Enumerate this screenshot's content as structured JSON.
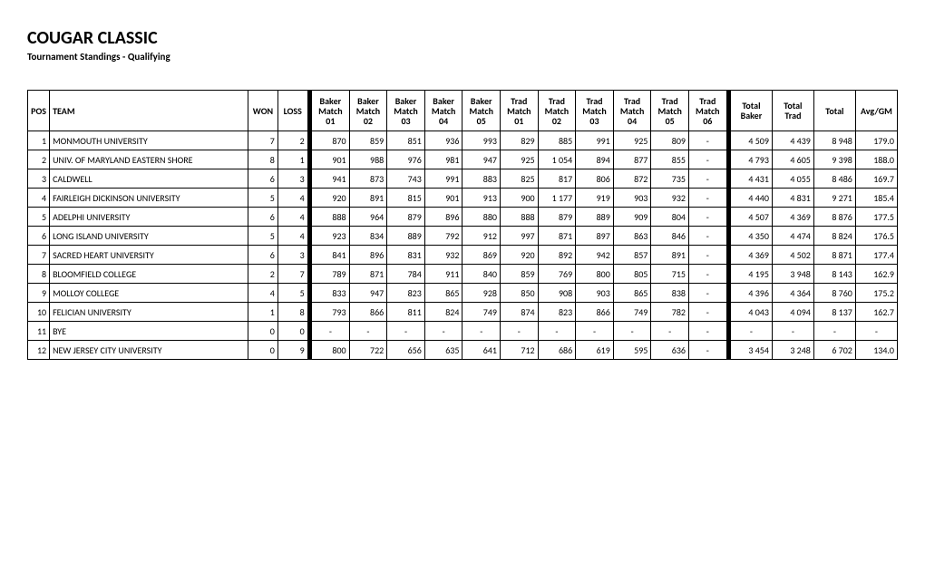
{
  "title": "COUGAR CLASSIC",
  "subtitle": "Tournament Standings - Qualifying",
  "headers": {
    "pos": "POS",
    "team": "TEAM",
    "won": "WON",
    "loss": "LOSS",
    "baker": "Baker",
    "trad": "Trad",
    "match": "Match",
    "m01": "01",
    "m02": "02",
    "m03": "03",
    "m04": "04",
    "m05": "05",
    "m06": "06",
    "total_baker": "Total\nBaker",
    "total_trad": "Total\nTrad",
    "total": "Total",
    "avg": "Avg/GM"
  },
  "rows": [
    {
      "pos": "1",
      "team": "MONMOUTH UNIVERSITY",
      "won": "7",
      "loss": "2",
      "b01": "870",
      "b02": "859",
      "b03": "851",
      "b04": "936",
      "b05": "993",
      "t01": "829",
      "t02": "885",
      "t03": "991",
      "t04": "925",
      "t05": "809",
      "t06": "-",
      "tb": "4 509",
      "tt": "4 439",
      "tot": "8 948",
      "avg": "179.0"
    },
    {
      "pos": "2",
      "team": "UNIV. OF MARYLAND EASTERN SHORE",
      "won": "8",
      "loss": "1",
      "b01": "901",
      "b02": "988",
      "b03": "976",
      "b04": "981",
      "b05": "947",
      "t01": "925",
      "t02": "1 054",
      "t03": "894",
      "t04": "877",
      "t05": "855",
      "t06": "-",
      "tb": "4 793",
      "tt": "4 605",
      "tot": "9 398",
      "avg": "188.0"
    },
    {
      "pos": "3",
      "team": "CALDWELL",
      "won": "6",
      "loss": "3",
      "b01": "941",
      "b02": "873",
      "b03": "743",
      "b04": "991",
      "b05": "883",
      "t01": "825",
      "t02": "817",
      "t03": "806",
      "t04": "872",
      "t05": "735",
      "t06": "-",
      "tb": "4 431",
      "tt": "4 055",
      "tot": "8 486",
      "avg": "169.7"
    },
    {
      "pos": "4",
      "team": "FAIRLEIGH DICKINSON UNIVERSITY",
      "won": "5",
      "loss": "4",
      "b01": "920",
      "b02": "891",
      "b03": "815",
      "b04": "901",
      "b05": "913",
      "t01": "900",
      "t02": "1 177",
      "t03": "919",
      "t04": "903",
      "t05": "932",
      "t06": "-",
      "tb": "4 440",
      "tt": "4 831",
      "tot": "9 271",
      "avg": "185.4"
    },
    {
      "pos": "5",
      "team": "ADELPHI UNIVERSITY",
      "won": "6",
      "loss": "4",
      "b01": "888",
      "b02": "964",
      "b03": "879",
      "b04": "896",
      "b05": "880",
      "t01": "888",
      "t02": "879",
      "t03": "889",
      "t04": "909",
      "t05": "804",
      "t06": "-",
      "tb": "4 507",
      "tt": "4 369",
      "tot": "8 876",
      "avg": "177.5"
    },
    {
      "pos": "6",
      "team": "LONG ISLAND UNIVERSITY",
      "won": "5",
      "loss": "4",
      "b01": "923",
      "b02": "834",
      "b03": "889",
      "b04": "792",
      "b05": "912",
      "t01": "997",
      "t02": "871",
      "t03": "897",
      "t04": "863",
      "t05": "846",
      "t06": "-",
      "tb": "4 350",
      "tt": "4 474",
      "tot": "8 824",
      "avg": "176.5"
    },
    {
      "pos": "7",
      "team": "SACRED HEART UNIVERSITY",
      "won": "6",
      "loss": "3",
      "b01": "841",
      "b02": "896",
      "b03": "831",
      "b04": "932",
      "b05": "869",
      "t01": "920",
      "t02": "892",
      "t03": "942",
      "t04": "857",
      "t05": "891",
      "t06": "-",
      "tb": "4 369",
      "tt": "4 502",
      "tot": "8 871",
      "avg": "177.4"
    },
    {
      "pos": "8",
      "team": "BLOOMFIELD COLLEGE",
      "won": "2",
      "loss": "7",
      "b01": "789",
      "b02": "871",
      "b03": "784",
      "b04": "911",
      "b05": "840",
      "t01": "859",
      "t02": "769",
      "t03": "800",
      "t04": "805",
      "t05": "715",
      "t06": "-",
      "tb": "4 195",
      "tt": "3 948",
      "tot": "8 143",
      "avg": "162.9"
    },
    {
      "pos": "9",
      "team": "MOLLOY COLLEGE",
      "won": "4",
      "loss": "5",
      "b01": "833",
      "b02": "947",
      "b03": "823",
      "b04": "865",
      "b05": "928",
      "t01": "850",
      "t02": "908",
      "t03": "903",
      "t04": "865",
      "t05": "838",
      "t06": "-",
      "tb": "4 396",
      "tt": "4 364",
      "tot": "8 760",
      "avg": "175.2"
    },
    {
      "pos": "10",
      "team": "FELICIAN UNIVERSITY",
      "won": "1",
      "loss": "8",
      "b01": "793",
      "b02": "866",
      "b03": "811",
      "b04": "824",
      "b05": "749",
      "t01": "874",
      "t02": "823",
      "t03": "866",
      "t04": "749",
      "t05": "782",
      "t06": "-",
      "tb": "4 043",
      "tt": "4 094",
      "tot": "8 137",
      "avg": "162.7"
    },
    {
      "pos": "11",
      "team": "BYE",
      "won": "0",
      "loss": "0",
      "b01": "-",
      "b02": "-",
      "b03": "-",
      "b04": "-",
      "b05": "-",
      "t01": "-",
      "t02": "-",
      "t03": "-",
      "t04": "-",
      "t05": "-",
      "t06": "-",
      "tb": "-",
      "tt": "-",
      "tot": "-",
      "avg": "-"
    },
    {
      "pos": "12",
      "team": "NEW JERSEY CITY UNIVERSITY",
      "won": "0",
      "loss": "9",
      "b01": "800",
      "b02": "722",
      "b03": "656",
      "b04": "635",
      "b05": "641",
      "t01": "712",
      "t02": "686",
      "t03": "619",
      "t04": "595",
      "t05": "636",
      "t06": "-",
      "tb": "3 454",
      "tt": "3 248",
      "tot": "6 702",
      "avg": "134.0"
    }
  ],
  "styling": {
    "font_family": "Calibri, Arial, sans-serif",
    "title_fontsize": 20,
    "body_fontsize": 10,
    "border_color": "#000000",
    "background": "#ffffff",
    "separator_color": "#000000"
  }
}
